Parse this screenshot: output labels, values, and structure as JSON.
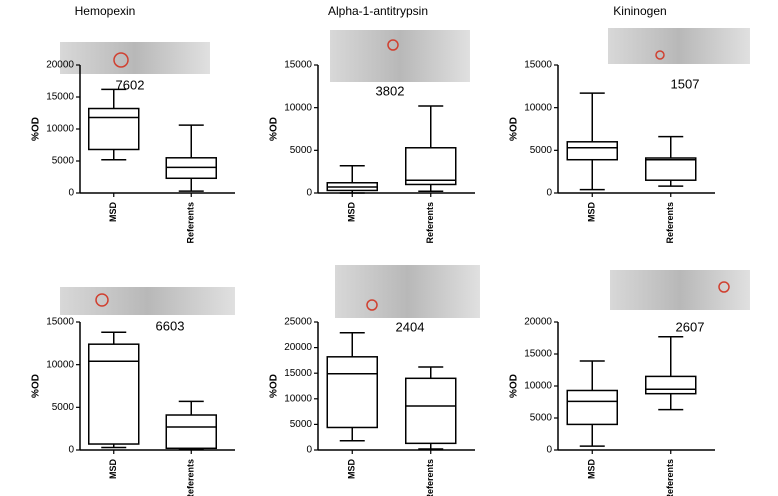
{
  "chart_data": [
    {
      "type": "box",
      "title": "Hemopexin",
      "annotation": "7602",
      "y_label": "%OD",
      "categories": [
        "MSD",
        "Referents"
      ],
      "boxes": [
        {
          "min": 5200,
          "q1": 6800,
          "median": 11800,
          "q3": 13200,
          "max": 16200
        },
        {
          "min": 300,
          "q1": 2300,
          "median": 4000,
          "q3": 5500,
          "max": 10600
        }
      ],
      "ylim": [
        0,
        20000
      ],
      "yticks": [
        0,
        5000,
        10000,
        15000,
        20000
      ]
    },
    {
      "type": "box",
      "title": "Alpha-1-antitrypsin",
      "annotation": "3802",
      "y_label": "%OD",
      "categories": [
        "MSD",
        "Referents"
      ],
      "boxes": [
        {
          "min": 0,
          "q1": 300,
          "median": 700,
          "q3": 1200,
          "max": 3200
        },
        {
          "min": 200,
          "q1": 1000,
          "median": 1500,
          "q3": 5300,
          "max": 10200
        }
      ],
      "ylim": [
        0,
        15000
      ],
      "yticks": [
        0,
        5000,
        10000,
        15000
      ]
    },
    {
      "type": "box",
      "title": "Kininogen",
      "annotation": "1507",
      "y_label": "%OD",
      "categories": [
        "MSD",
        "Referents"
      ],
      "boxes": [
        {
          "min": 400,
          "q1": 3900,
          "median": 5300,
          "q3": 6000,
          "max": 11700
        },
        {
          "min": 800,
          "q1": 1500,
          "median": 3900,
          "q3": 4100,
          "max": 6600
        }
      ],
      "ylim": [
        0,
        15000
      ],
      "yticks": [
        0,
        5000,
        10000,
        15000
      ]
    },
    {
      "type": "box",
      "annotation": "6603",
      "y_label": "%OD",
      "categories": [
        "MSD",
        "Referents"
      ],
      "boxes": [
        {
          "min": 300,
          "q1": 700,
          "median": 10400,
          "q3": 12400,
          "max": 13800
        },
        {
          "min": 100,
          "q1": 200,
          "median": 2700,
          "q3": 4100,
          "max": 5700
        }
      ],
      "ylim": [
        0,
        15000
      ],
      "yticks": [
        0,
        5000,
        10000,
        15000
      ]
    },
    {
      "type": "box",
      "annotation": "2404",
      "y_label": "%OD",
      "categories": [
        "MSD",
        "Referents"
      ],
      "boxes": [
        {
          "min": 1800,
          "q1": 4400,
          "median": 14900,
          "q3": 18200,
          "max": 22900
        },
        {
          "min": 200,
          "q1": 1300,
          "median": 8600,
          "q3": 14000,
          "max": 16200
        }
      ],
      "ylim": [
        0,
        25000
      ],
      "yticks": [
        0,
        5000,
        10000,
        15000,
        20000,
        25000
      ]
    },
    {
      "type": "box",
      "annotation": "2607",
      "y_label": "%OD",
      "categories": [
        "MSD",
        "Referents"
      ],
      "boxes": [
        {
          "min": 600,
          "q1": 4000,
          "median": 7600,
          "q3": 9300,
          "max": 13900
        },
        {
          "min": 6300,
          "q1": 8800,
          "median": 9500,
          "q3": 11500,
          "max": 17700
        }
      ],
      "ylim": [
        0,
        20000
      ],
      "yticks": [
        0,
        5000,
        10000,
        15000,
        20000
      ]
    }
  ]
}
